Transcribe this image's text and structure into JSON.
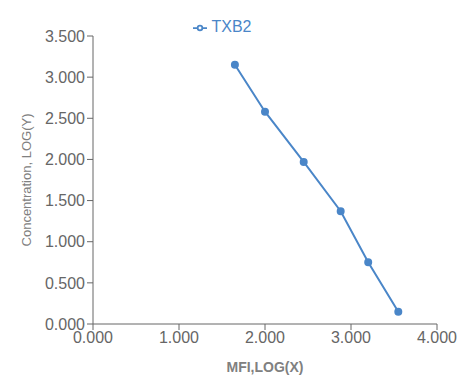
{
  "chart_data": {
    "type": "line",
    "x": [
      1.65,
      2.0,
      2.45,
      2.88,
      3.2,
      3.55
    ],
    "series": [
      {
        "name": "TXB2",
        "color": "#4a86c8",
        "marker": "circle",
        "values": [
          3.15,
          2.58,
          1.97,
          1.37,
          0.75,
          0.15
        ]
      }
    ],
    "xlabel": "MFI,LOG(X)",
    "ylabel": "Concentration, LOG(Y)",
    "xlim": [
      0.0,
      4.0
    ],
    "ylim": [
      0.0,
      3.5
    ],
    "xticks": [
      {
        "value": 0.0,
        "label": "0.000"
      },
      {
        "value": 1.0,
        "label": "1.000"
      },
      {
        "value": 2.0,
        "label": "2.000"
      },
      {
        "value": 3.0,
        "label": "3.000"
      },
      {
        "value": 4.0,
        "label": "4.000"
      }
    ],
    "yticks": [
      {
        "value": 0.0,
        "label": "0.000"
      },
      {
        "value": 0.5,
        "label": "0.500"
      },
      {
        "value": 1.0,
        "label": "1.000"
      },
      {
        "value": 1.5,
        "label": "1.500"
      },
      {
        "value": 2.0,
        "label": "2.000"
      },
      {
        "value": 2.5,
        "label": "2.500"
      },
      {
        "value": 3.0,
        "label": "3.000"
      },
      {
        "value": 3.5,
        "label": "3.500"
      }
    ],
    "legend": "top"
  }
}
